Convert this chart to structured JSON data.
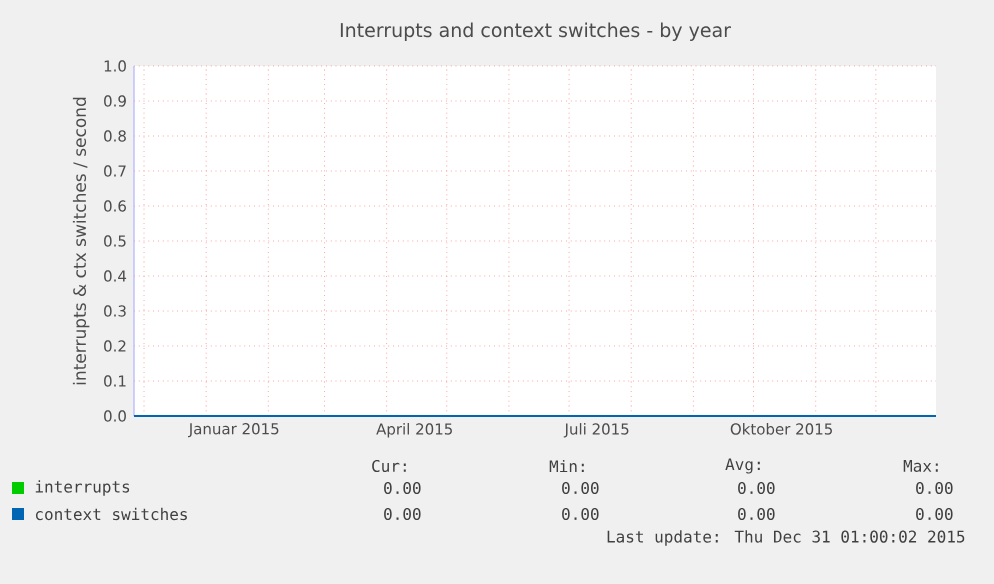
{
  "chart_data": {
    "type": "line",
    "title": "Interrupts and context switches - by year",
    "ylabel": "interrupts & ctx switches / second",
    "xlim": [
      "2014-11-26",
      "2015-12-31"
    ],
    "xticks": [
      {
        "value": "2014-12-01",
        "label": null
      },
      {
        "value": "2015-01-01",
        "label": null
      },
      {
        "value": "2015-02-01",
        "label": null
      },
      {
        "value": "2015-03-01",
        "label": null
      },
      {
        "value": "2015-04-01",
        "label": null
      },
      {
        "value": "2015-05-01",
        "label": null
      },
      {
        "value": "2015-06-01",
        "label": null
      },
      {
        "value": "2015-07-01",
        "label": null
      },
      {
        "value": "2015-08-01",
        "label": null
      },
      {
        "value": "2015-09-01",
        "label": null
      },
      {
        "value": "2015-10-01",
        "label": null
      },
      {
        "value": "2015-11-01",
        "label": null
      },
      {
        "value": "2015-12-01",
        "label": null
      },
      {
        "value": "2015-01-15",
        "label": "Januar 2015"
      },
      {
        "value": "2015-04-15",
        "label": "April 2015"
      },
      {
        "value": "2015-07-15",
        "label": "Juli 2015"
      },
      {
        "value": "2015-10-15",
        "label": "Oktober 2015"
      }
    ],
    "ylim": [
      0,
      1
    ],
    "x": [
      "2014-11-26",
      "2015-12-31"
    ],
    "yticks": [
      {
        "value": 0,
        "label": "0.0"
      },
      {
        "value": 0.1,
        "label": "0.1"
      },
      {
        "value": 0.2,
        "label": "0.2"
      },
      {
        "value": 0.3,
        "label": "0.3"
      },
      {
        "value": 0.4,
        "label": "0.4"
      },
      {
        "value": 0.5,
        "label": "0.5"
      },
      {
        "value": 0.6,
        "label": "0.6"
      },
      {
        "value": 0.7,
        "label": "0.7"
      },
      {
        "value": 0.8,
        "label": "0.8"
      },
      {
        "value": 0.9,
        "label": "0.9"
      },
      {
        "value": 1,
        "label": "1.0"
      }
    ],
    "grid": true,
    "legend": "bottom",
    "series": [
      {
        "name": "interrupts",
        "color": "#00cc00",
        "values": [
          null,
          null
        ]
      },
      {
        "name": "context switches",
        "color": "#0066b3",
        "values": [
          0,
          0
        ]
      }
    ],
    "annotations": [
      "Cur:",
      "Min:",
      "Avg:",
      "Max:",
      "0.00",
      "0.00",
      "0.00",
      "0.00",
      "0.00",
      "0.00",
      "0.00",
      "0.00",
      "Last update:  Thu Dec 31 01:00:02 2015"
    ]
  }
}
